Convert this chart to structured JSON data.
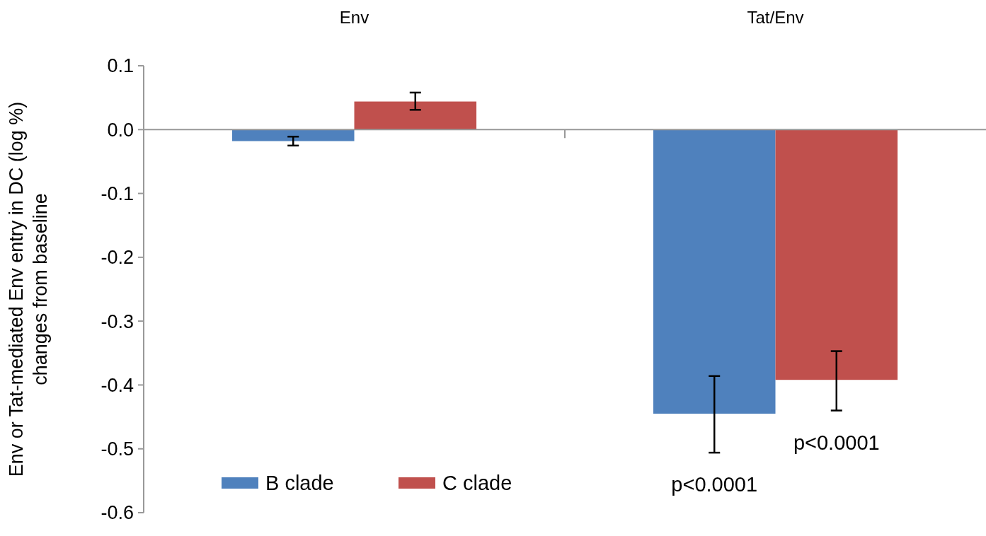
{
  "chart_data": {
    "type": "bar",
    "ylabel": "Env or Tat-mediated Env entry in DC (log %)\nchanges from baseline",
    "categories": [
      "Env",
      "Tat/Env"
    ],
    "series": [
      {
        "name": "B clade",
        "color": "#4f81bd",
        "values": [
          -0.018,
          -0.445
        ],
        "errors": [
          [
            -0.025,
            -0.011
          ],
          [
            -0.506,
            -0.386
          ]
        ]
      },
      {
        "name": "C clade",
        "color": "#c0504d",
        "values": [
          0.044,
          -0.392
        ],
        "errors": [
          [
            0.031,
            0.058
          ],
          [
            -0.44,
            -0.347
          ]
        ]
      }
    ],
    "ylim": [
      -0.6,
      0.1
    ],
    "yticks": [
      0.1,
      {
        "value": 0,
        "label": "0.0"
      },
      -0.1,
      -0.2,
      -0.3,
      -0.4,
      -0.5,
      -0.6
    ],
    "annotations": [
      "p<0.0001",
      "p<0.0001"
    ],
    "legend": "bottom left"
  }
}
